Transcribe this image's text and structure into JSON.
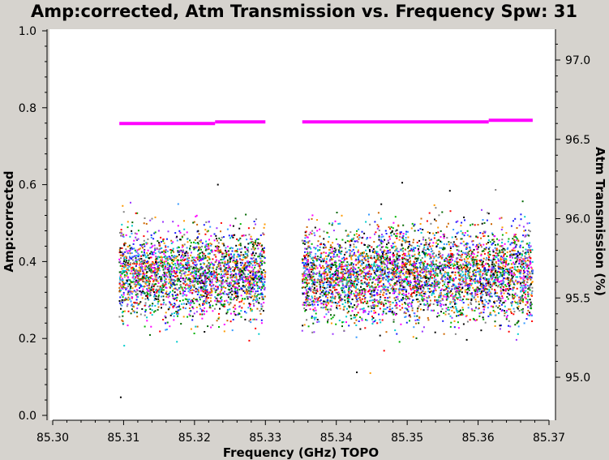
{
  "chart_data": {
    "type": "scatter",
    "title": "Amp:corrected, Atm Transmission vs. Frequency Spw: 31",
    "xlabel": "Frequency (GHz) TOPO",
    "ylabel": "Amp:corrected",
    "y2label": "Atm Transmission (%)",
    "xlim": [
      85.3,
      85.37
    ],
    "ylim": [
      0.0,
      1.0
    ],
    "y2lim": [
      94.77,
      97.3
    ],
    "x_ticks": [
      "85.30",
      "85.31",
      "85.32",
      "85.33",
      "85.34",
      "85.35",
      "85.36",
      "85.37"
    ],
    "y_ticks": [
      "0.0",
      "0.2",
      "0.4",
      "0.6",
      "0.8",
      "1.0"
    ],
    "y2_ticks": [
      "95.0",
      "95.5",
      "96.0",
      "96.5",
      "97.0"
    ],
    "grid": false,
    "series": [
      {
        "kind": "scatter-band",
        "segments": [
          {
            "x_range": [
              85.3094,
              85.33
            ],
            "y_center": 0.365,
            "y_typical": [
              0.27,
              0.48
            ],
            "y_extremes": [
              0.15,
              0.57
            ]
          },
          {
            "x_range": [
              85.3352,
              85.3677
            ],
            "y_center": 0.365,
            "y_typical": [
              0.26,
              0.48
            ],
            "y_extremes": [
              0.11,
              0.61
            ]
          }
        ],
        "outliers": [
          {
            "x": 85.3096,
            "y": 0.047
          },
          {
            "x": 85.3233,
            "y": 0.6
          },
          {
            "x": 85.3429,
            "y": 0.112
          },
          {
            "x": 85.3493,
            "y": 0.605
          }
        ],
        "colors": [
          "#000000",
          "#1a1aff",
          "#ff0000",
          "#00b300",
          "#ff00ff",
          "#00cccc",
          "#ff9900",
          "#9933ff",
          "#808080",
          "#006600",
          "#cc6600",
          "#3399ff"
        ]
      },
      {
        "name": "Atm Transmission",
        "kind": "line",
        "color": "#ff00ff",
        "axis": "right",
        "segments": [
          {
            "x": [
              85.3094,
              85.3229
            ],
            "y": [
              96.6,
              96.6
            ]
          },
          {
            "x": [
              85.3229,
              85.33
            ],
            "y": [
              96.61,
              96.61
            ]
          },
          {
            "x": [
              85.3352,
              85.3615
            ],
            "y": [
              96.61,
              96.61
            ]
          },
          {
            "x": [
              85.3615,
              85.3677
            ],
            "y": [
              96.62,
              96.62
            ]
          }
        ]
      }
    ]
  }
}
